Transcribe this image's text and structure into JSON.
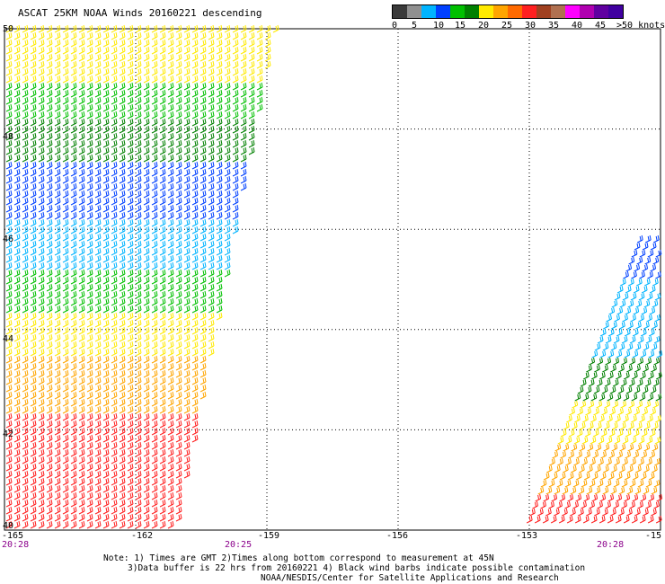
{
  "title": "ASCAT 25KM NOAA Winds 20160221 descending",
  "legend": {
    "colors": [
      "#3a3a3a",
      "#909090",
      "#00b4ff",
      "#0040ff",
      "#00c000",
      "#008000",
      "#ffea00",
      "#ffa500",
      "#ff6a00",
      "#ff2020",
      "#a04020",
      "#b07050",
      "#ff00ff",
      "#b000b0",
      "#6000a0",
      "#4000a0"
    ],
    "ticks": [
      "0",
      "5",
      "10",
      "15",
      "20",
      "25",
      "30",
      "35",
      "40",
      "45",
      ">50 knots"
    ]
  },
  "axes": {
    "lat_labels": [
      "50",
      "48",
      "46",
      "44",
      "42",
      "40"
    ],
    "lon_labels": [
      "-165",
      "-162",
      "-159",
      "-156",
      "-153",
      "-15"
    ]
  },
  "times": [
    "20:28",
    "20:25",
    "20:28"
  ],
  "notes": {
    "line1": "Note: 1) Times are GMT 2)Times along bottom correspond to measurement at 45N",
    "line2": "3)Data buffer is 22 hrs from 20160221 4) Black wind barbs indicate possible contamination",
    "line3": "NOAA/NESDIS/Center for Satellite Applications and Research"
  }
}
